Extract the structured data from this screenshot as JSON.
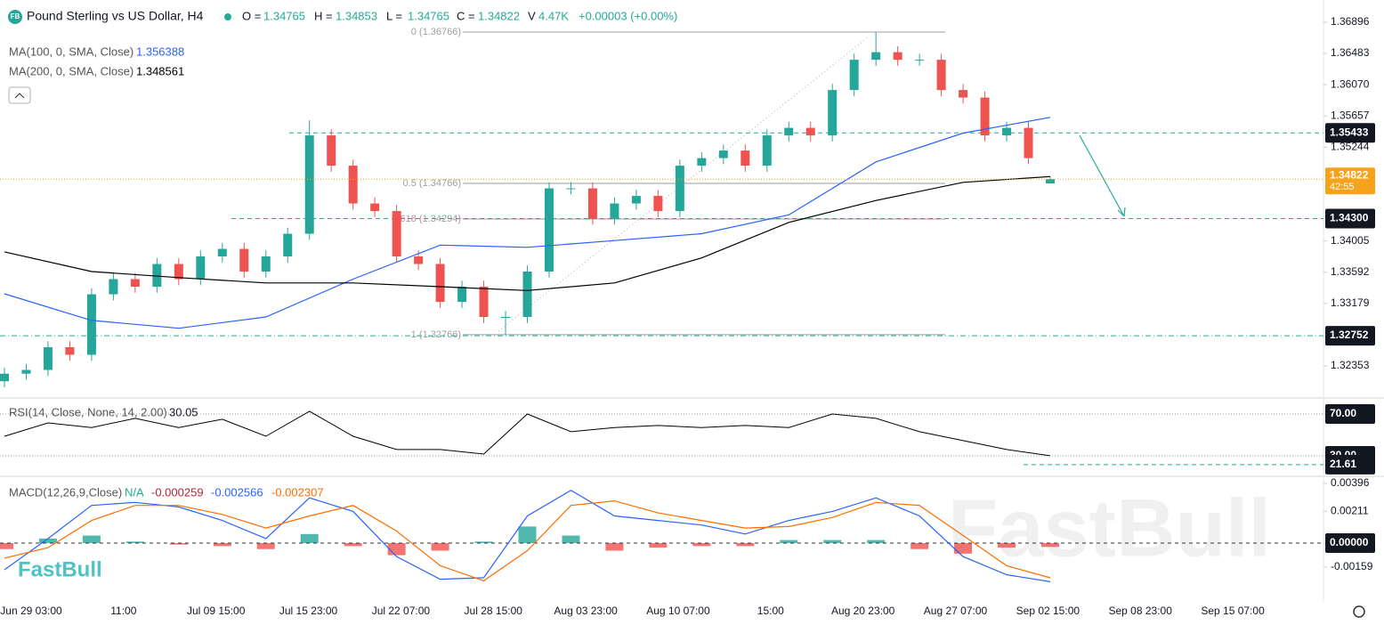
{
  "brand": "FastBull",
  "time_axis": [
    "Jun 29 03:00",
    "11:00",
    "Jul 09 15:00",
    "Jul 15 23:00",
    "Jul 22 07:00",
    "Jul 28 15:00",
    "Aug 03 23:00",
    "Aug 10 07:00",
    "15:00",
    "Aug 20 23:00",
    "Aug 27 07:00",
    "Sep 02 15:00",
    "Sep 08 23:00",
    "Sep 15 07:00"
  ],
  "chart_data": [
    {
      "type": "candlestick",
      "logo": "FB",
      "title": "Pound Sterling vs US Dollar, H4",
      "ohlc_labels": [
        "O =",
        "H =",
        "L =",
        "C ="
      ],
      "volume_label": "V",
      "volume": "4.47K",
      "change": "+0.00003 (+0.00%)",
      "countdown": "42:55",
      "up_color": "#26a69a",
      "down_color": "#ef5350",
      "open": [
        1.3215,
        1.3225,
        1.323,
        1.326,
        1.325,
        1.333,
        1.335,
        1.334,
        1.337,
        1.335,
        1.338,
        1.339,
        1.336,
        1.338,
        1.341,
        1.354,
        1.35,
        1.345,
        1.344,
        1.338,
        1.337,
        1.332,
        1.334,
        1.33,
        1.33,
        1.336,
        1.347,
        1.347,
        1.343,
        1.345,
        1.346,
        1.344,
        1.35,
        1.351,
        1.352,
        1.35,
        1.354,
        1.355,
        1.354,
        1.36,
        1.364,
        1.365,
        1.364,
        1.364,
        1.36,
        1.359,
        1.354,
        1.355,
        1.34765
      ],
      "high": [
        1.3233,
        1.3238,
        1.3268,
        1.3268,
        1.3338,
        1.3358,
        1.3358,
        1.3378,
        1.3378,
        1.3388,
        1.3398,
        1.3398,
        1.3388,
        1.3418,
        1.356,
        1.3548,
        1.3508,
        1.3458,
        1.3448,
        1.3388,
        1.3378,
        1.3348,
        1.3348,
        1.3308,
        1.3368,
        1.3478,
        1.3478,
        1.3478,
        1.3458,
        1.3468,
        1.3468,
        1.3508,
        1.3518,
        1.3528,
        1.3528,
        1.3548,
        1.3558,
        1.3558,
        1.3608,
        1.3648,
        1.36766,
        1.3658,
        1.3648,
        1.3648,
        1.3608,
        1.3598,
        1.3558,
        1.3558,
        1.34853
      ],
      "low": [
        1.3207,
        1.3217,
        1.3222,
        1.3242,
        1.3242,
        1.3322,
        1.3332,
        1.3332,
        1.3342,
        1.3342,
        1.3372,
        1.3352,
        1.3352,
        1.3372,
        1.3402,
        1.3492,
        1.3442,
        1.3432,
        1.3372,
        1.3362,
        1.3312,
        1.3312,
        1.3292,
        1.32766,
        1.3292,
        1.3352,
        1.3462,
        1.3422,
        1.3422,
        1.3442,
        1.3432,
        1.3432,
        1.3492,
        1.3502,
        1.3492,
        1.3492,
        1.3532,
        1.3532,
        1.3532,
        1.3592,
        1.3632,
        1.3632,
        1.3632,
        1.3592,
        1.3582,
        1.3532,
        1.3532,
        1.3502,
        1.34765
      ],
      "close": [
        1.3225,
        1.323,
        1.326,
        1.325,
        1.333,
        1.335,
        1.334,
        1.337,
        1.335,
        1.338,
        1.339,
        1.336,
        1.338,
        1.341,
        1.354,
        1.35,
        1.345,
        1.344,
        1.338,
        1.337,
        1.332,
        1.334,
        1.33,
        1.33,
        1.336,
        1.347,
        1.347,
        1.343,
        1.345,
        1.346,
        1.344,
        1.35,
        1.351,
        1.352,
        1.35,
        1.354,
        1.355,
        1.354,
        1.36,
        1.364,
        1.365,
        1.364,
        1.364,
        1.36,
        1.359,
        1.354,
        1.355,
        1.351,
        1.34822
      ],
      "series": [
        {
          "name": "MA(100, 0, SMA, Close)",
          "color": "#2962ff",
          "values": [
            1.33306,
            1.32954,
            1.3285,
            1.33,
            1.335,
            1.3395,
            1.3392,
            1.3401,
            1.341,
            1.3435,
            1.3505,
            1.3543,
            1.356388
          ]
        },
        {
          "name": "MA(200, 0, SMA, Close)",
          "color": "#000000",
          "values": [
            1.3386,
            1.336,
            1.3352,
            1.3345,
            1.3345,
            1.334,
            1.3335,
            1.3345,
            1.3378,
            1.3425,
            1.3454,
            1.3478,
            1.348561
          ]
        }
      ],
      "levels": [
        1.35433,
        {
          "value": 1.343,
          "label": "1.34300"
        },
        1.32752
      ],
      "level_color": "#22ab94",
      "fib_levels": [
        {
          "value": 1.36766,
          "label": "0 (1.36766)"
        },
        {
          "value": 1.34766,
          "label": "0.5 (1.34766)"
        },
        {
          "value": 1.34294,
          "label": "0.618 (1.34294)"
        },
        {
          "value": 1.32766,
          "label": "1 (1.32766)"
        }
      ],
      "ylim": [
        1.31929,
        1.3719
      ],
      "yticks": [
        1.36896,
        1.36483,
        {
          "value": 1.3607,
          "label": "1.36070"
        },
        1.35657,
        1.35244,
        1.34005,
        1.33592,
        1.33179,
        1.32353
      ]
    },
    {
      "type": "line",
      "title": "RSI(14, Close, None, 14, 2.00)",
      "color": "#000000",
      "values": [
        48.7,
        61.5,
        57,
        65.8,
        57,
        65,
        48.7,
        72.5,
        48.7,
        36,
        36,
        31.7,
        70,
        53,
        57,
        59,
        57,
        59,
        57,
        70,
        65.8,
        53,
        44.5,
        36,
        30.05
      ],
      "level": 21.61,
      "ylim": [
        10.4,
        85.3
      ],
      "yticks": [
        {
          "value": 70,
          "label": "70.00"
        },
        {
          "value": 30,
          "label": "30.00"
        }
      ]
    },
    {
      "type": "macd",
      "title": "MACD(12,26,9,Close)",
      "na": "N/A",
      "series": [
        {
          "color": "#2962ff",
          "values": [
            -0.00177,
            0.0003,
            0.0025,
            0.0027,
            0.0024,
            0.0015,
            0.0003,
            0.003,
            0.0021,
            -0.0009,
            -0.0024,
            -0.0023,
            0.0018,
            0.0035,
            0.0018,
            0.0015,
            0.0012,
            0.0006,
            0.0015,
            0.0021,
            0.003,
            0.0018,
            -0.0009,
            -0.0021,
            -0.002566
          ]
        },
        {
          "color": "#ff6d00",
          "values": [
            -0.001,
            -0.0003,
            0.0015,
            0.0025,
            0.0025,
            0.0019,
            0.001,
            0.0018,
            0.0025,
            0.0008,
            -0.0015,
            -0.0025,
            -0.0005,
            0.0025,
            0.0028,
            0.002,
            0.0015,
            0.001,
            0.0011,
            0.0017,
            0.0027,
            0.0025,
            0.0005,
            -0.0015,
            -0.002307
          ]
        }
      ],
      "histogram": {
        "values": [
          -0.0004,
          0.0003,
          0.0005,
          0.0001,
          -0.0001,
          -0.0002,
          -0.0004,
          0.0006,
          -0.0002,
          -0.0008,
          -0.0005,
          0.0001,
          0.0011,
          0.0005,
          -0.0005,
          -0.0003,
          -0.0002,
          -0.0002,
          0.0002,
          0.0002,
          0.0002,
          -0.0004,
          -0.0007,
          -0.0003,
          -0.000259
        ],
        "up_color": "#26a69a",
        "down_color": "#ef5350"
      },
      "ylim": [
        -0.00384,
        0.00443
      ],
      "yticks": [
        0.00396,
        0.00211,
        {
          "value": 0,
          "label": "0.00000"
        },
        -0.00159
      ]
    }
  ]
}
